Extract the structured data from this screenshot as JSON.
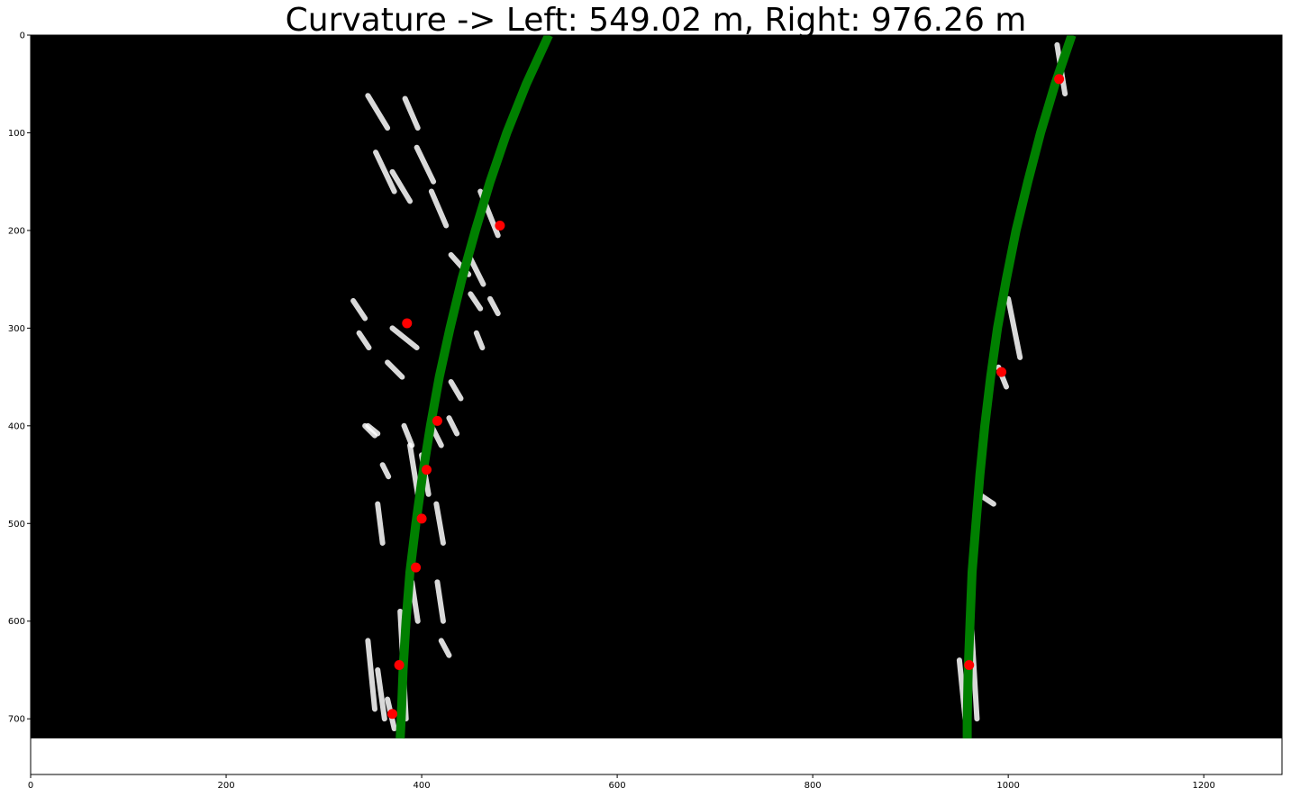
{
  "chart_data": {
    "type": "scatter",
    "title": "Curvature -> Left: 549.02 m, Right: 976.26 m",
    "xlabel": "",
    "ylabel": "",
    "xlim": [
      0,
      1280
    ],
    "ylim": [
      757,
      0
    ],
    "image_height": 720,
    "x_ticks": [
      0,
      200,
      400,
      600,
      800,
      1000,
      1200
    ],
    "y_ticks": [
      0,
      100,
      200,
      300,
      400,
      500,
      600,
      700
    ],
    "grid": false,
    "fit_color": "#008000",
    "point_color": "#ff0000",
    "background_color": "#000000",
    "lane_color": "#ffffff",
    "fit_lines": [
      {
        "name": "",
        "y": [
          0,
          50,
          100,
          150,
          200,
          250,
          300,
          350,
          400,
          450,
          500,
          550,
          600,
          650,
          700,
          720
        ],
        "x": [
          530,
          507,
          487,
          470,
          455,
          441,
          429,
          418,
          409,
          401,
          394,
          388,
          384,
          381,
          379,
          378
        ]
      },
      {
        "name": "",
        "y": [
          0,
          50,
          100,
          150,
          200,
          250,
          300,
          350,
          400,
          450,
          500,
          550,
          600,
          650,
          700,
          720
        ],
        "x": [
          1065,
          1048,
          1033,
          1020,
          1008,
          998,
          989,
          982,
          976,
          971,
          967,
          963,
          961,
          959,
          958,
          958
        ]
      }
    ],
    "points": [
      {
        "x": 480,
        "y": 195
      },
      {
        "x": 385,
        "y": 295
      },
      {
        "x": 416,
        "y": 395
      },
      {
        "x": 405,
        "y": 445
      },
      {
        "x": 400,
        "y": 495
      },
      {
        "x": 394,
        "y": 545
      },
      {
        "x": 377,
        "y": 645
      },
      {
        "x": 370,
        "y": 695
      },
      {
        "x": 1052,
        "y": 45
      },
      {
        "x": 993,
        "y": 345
      },
      {
        "x": 960,
        "y": 645
      }
    ],
    "lane_segments": [
      {
        "x1": 345,
        "y1": 400,
        "x2": 355,
        "y2": 408
      },
      {
        "x1": 345,
        "y1": 62,
        "x2": 365,
        "y2": 95
      },
      {
        "x1": 353,
        "y1": 120,
        "x2": 372,
        "y2": 160
      },
      {
        "x1": 370,
        "y1": 140,
        "x2": 388,
        "y2": 170
      },
      {
        "x1": 383,
        "y1": 65,
        "x2": 396,
        "y2": 95
      },
      {
        "x1": 395,
        "y1": 115,
        "x2": 412,
        "y2": 150
      },
      {
        "x1": 410,
        "y1": 160,
        "x2": 425,
        "y2": 195
      },
      {
        "x1": 430,
        "y1": 225,
        "x2": 448,
        "y2": 245
      },
      {
        "x1": 460,
        "y1": 160,
        "x2": 478,
        "y2": 205
      },
      {
        "x1": 448,
        "y1": 225,
        "x2": 463,
        "y2": 255
      },
      {
        "x1": 330,
        "y1": 272,
        "x2": 342,
        "y2": 290
      },
      {
        "x1": 336,
        "y1": 305,
        "x2": 346,
        "y2": 320
      },
      {
        "x1": 370,
        "y1": 300,
        "x2": 395,
        "y2": 320
      },
      {
        "x1": 365,
        "y1": 335,
        "x2": 380,
        "y2": 350
      },
      {
        "x1": 450,
        "y1": 265,
        "x2": 460,
        "y2": 280
      },
      {
        "x1": 470,
        "y1": 270,
        "x2": 478,
        "y2": 285
      },
      {
        "x1": 456,
        "y1": 305,
        "x2": 462,
        "y2": 320
      },
      {
        "x1": 430,
        "y1": 355,
        "x2": 440,
        "y2": 372
      },
      {
        "x1": 428,
        "y1": 392,
        "x2": 436,
        "y2": 408
      },
      {
        "x1": 410,
        "y1": 400,
        "x2": 420,
        "y2": 420
      },
      {
        "x1": 382,
        "y1": 400,
        "x2": 390,
        "y2": 420
      },
      {
        "x1": 342,
        "y1": 400,
        "x2": 352,
        "y2": 410
      },
      {
        "x1": 360,
        "y1": 440,
        "x2": 366,
        "y2": 452
      },
      {
        "x1": 355,
        "y1": 480,
        "x2": 360,
        "y2": 520
      },
      {
        "x1": 388,
        "y1": 420,
        "x2": 396,
        "y2": 470
      },
      {
        "x1": 400,
        "y1": 430,
        "x2": 407,
        "y2": 470
      },
      {
        "x1": 390,
        "y1": 560,
        "x2": 396,
        "y2": 600
      },
      {
        "x1": 415,
        "y1": 480,
        "x2": 422,
        "y2": 520
      },
      {
        "x1": 416,
        "y1": 560,
        "x2": 422,
        "y2": 600
      },
      {
        "x1": 420,
        "y1": 620,
        "x2": 428,
        "y2": 635
      },
      {
        "x1": 378,
        "y1": 590,
        "x2": 384,
        "y2": 700
      },
      {
        "x1": 365,
        "y1": 680,
        "x2": 372,
        "y2": 710
      },
      {
        "x1": 355,
        "y1": 650,
        "x2": 362,
        "y2": 700
      },
      {
        "x1": 345,
        "y1": 620,
        "x2": 352,
        "y2": 690
      },
      {
        "x1": 1050,
        "y1": 10,
        "x2": 1058,
        "y2": 60
      },
      {
        "x1": 1000,
        "y1": 270,
        "x2": 1012,
        "y2": 330
      },
      {
        "x1": 990,
        "y1": 340,
        "x2": 998,
        "y2": 360
      },
      {
        "x1": 970,
        "y1": 470,
        "x2": 985,
        "y2": 480
      },
      {
        "x1": 962,
        "y1": 600,
        "x2": 968,
        "y2": 700
      },
      {
        "x1": 950,
        "y1": 640,
        "x2": 956,
        "y2": 700
      }
    ]
  }
}
